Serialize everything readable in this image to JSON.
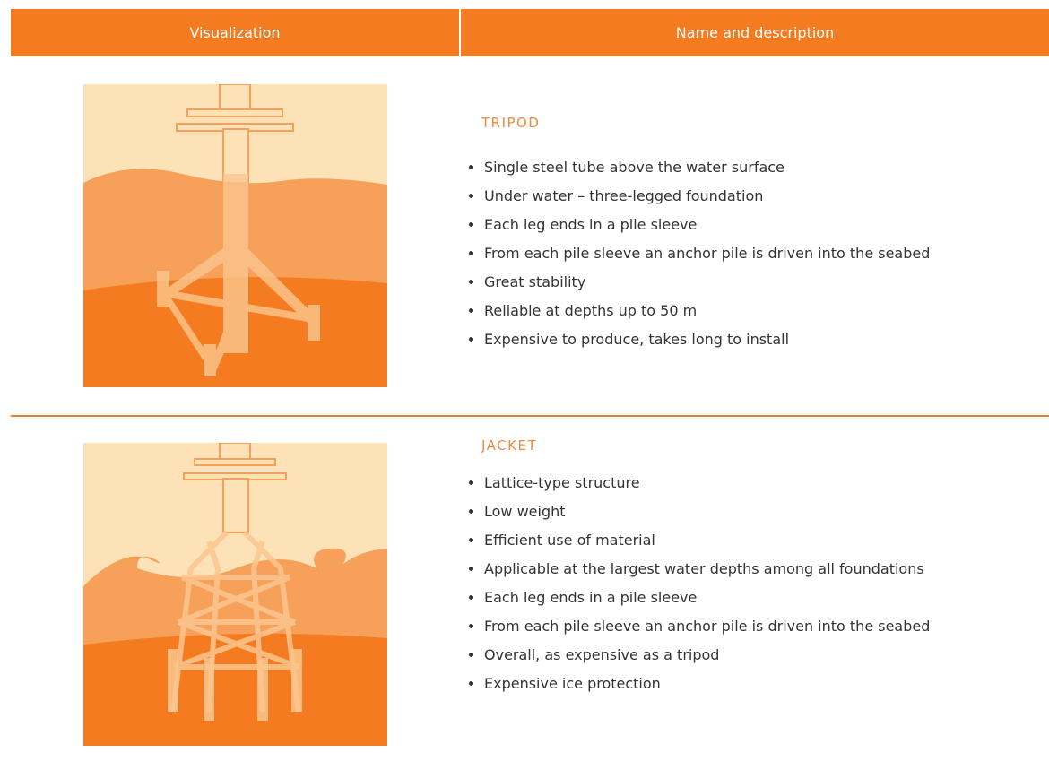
{
  "table": {
    "header": [
      "Visualization",
      "Name and description"
    ],
    "rows": [
      {
        "title": "TRIPOD",
        "items": [
          "Single steel tube above the water surface",
          "Under water – three-legged foundation",
          "Each leg ends in a pile sleeve",
          "From each pile sleeve an anchor pile is driven into the seabed",
          "Great stability",
          "Reliable at depths up to 50 m",
          "Expensive to produce, takes long to install"
        ]
      },
      {
        "title": "JACKET",
        "items": [
          "Lattice-type structure",
          "Low weight",
          "Efficient use of material",
          "Applicable at the largest water depths among all foundations",
          "Each leg ends in a pile sleeve",
          "From each pile sleeve an anchor pile is driven into the seabed",
          "Overall, as expensive as a tripod",
          "Expensive ice protection"
        ]
      }
    ]
  }
}
